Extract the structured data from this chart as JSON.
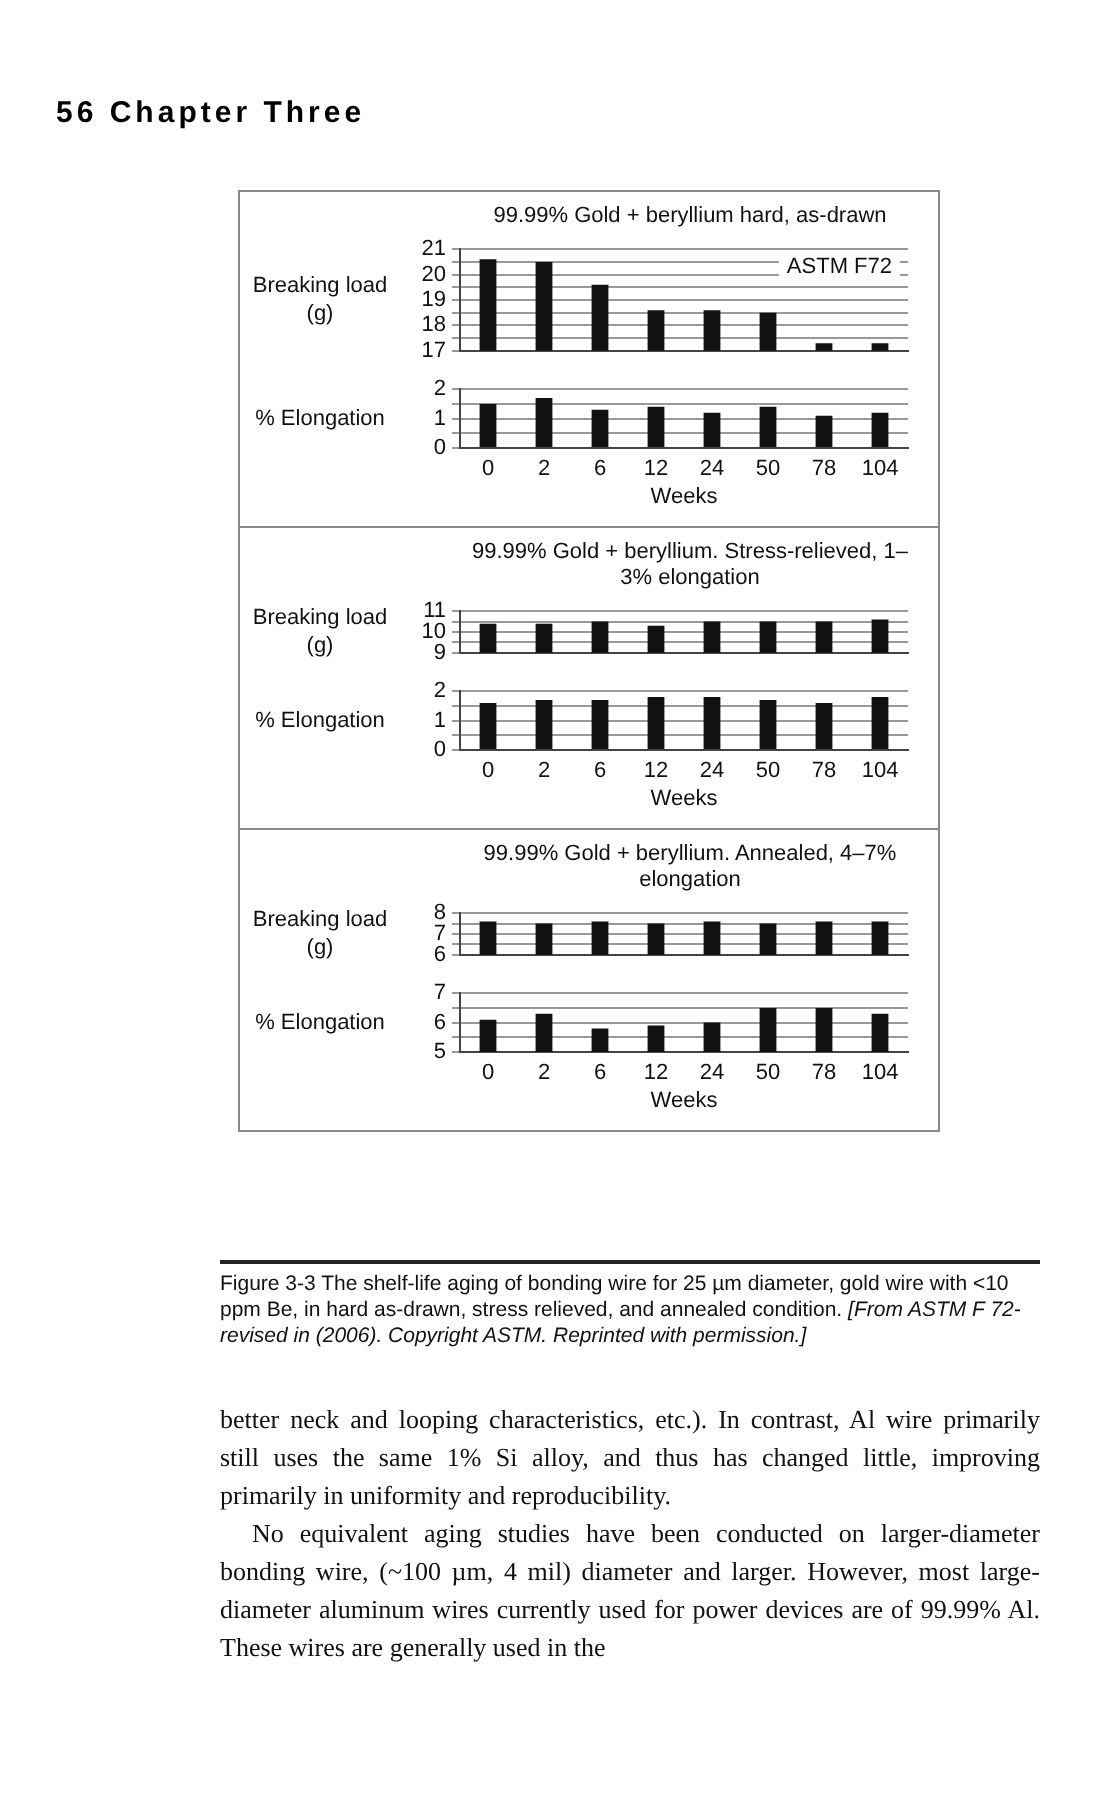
{
  "chart_data": [
    {
      "type": "bar",
      "title": "99.99% Gold + beryllium hard, as-drawn",
      "ylabel": "Breaking load (g)",
      "annotations": [
        "56 Chapter Three",
        "ASTM F72"
      ],
      "categories": [
        "0",
        "2",
        "6",
        "12",
        "24",
        "50",
        "78",
        "104"
      ],
      "values": [
        20.6,
        20.5,
        19.6,
        18.6,
        18.6,
        18.5,
        17.3,
        17.3
      ],
      "color": "#111111",
      "ylim": [
        17,
        21
      ],
      "yticks": [
        17,
        {
          "value": 17.5,
          "label": null
        },
        18,
        {
          "value": 18.5,
          "label": null
        },
        19,
        {
          "value": 19.5,
          "label": null
        },
        20,
        {
          "value": 20.5,
          "label": null
        },
        21
      ],
      "grid": "y",
      "tick_labels": "y"
    },
    {
      "type": "bar",
      "xlabel": "Weeks",
      "ylabel": "% Elongation",
      "categories": [
        "0",
        "2",
        "6",
        "12",
        "24",
        "50",
        "78",
        "104"
      ],
      "values": [
        1.5,
        1.7,
        1.3,
        1.4,
        1.2,
        1.4,
        1.1,
        1.2
      ],
      "color": "#111111",
      "ylim": [
        0,
        2
      ],
      "yticks": [
        0,
        {
          "value": 0.5,
          "label": null
        },
        1,
        {
          "value": 1.5,
          "label": null
        },
        2
      ],
      "grid": "y"
    },
    {
      "type": "bar",
      "title": "99.99% Gold + beryllium. Stress-relieved, 1–3% elongation",
      "ylabel": "Breaking load (g)",
      "categories": [
        "0",
        "2",
        "6",
        "12",
        "24",
        "50",
        "78",
        "104"
      ],
      "values": [
        10.4,
        10.4,
        10.5,
        10.3,
        10.5,
        10.5,
        10.5,
        10.6
      ],
      "color": "#111111",
      "ylim": [
        9,
        11
      ],
      "yticks": [
        9,
        {
          "value": 9.5,
          "label": null
        },
        10,
        {
          "value": 10.5,
          "label": null
        },
        11
      ],
      "grid": "y",
      "tick_labels": "y"
    },
    {
      "type": "bar",
      "xlabel": "Weeks",
      "ylabel": "% Elongation",
      "categories": [
        "0",
        "2",
        "6",
        "12",
        "24",
        "50",
        "78",
        "104"
      ],
      "values": [
        1.6,
        1.7,
        1.7,
        1.8,
        1.8,
        1.7,
        1.6,
        1.8
      ],
      "color": "#111111",
      "ylim": [
        0,
        2
      ],
      "yticks": [
        0,
        {
          "value": 0.5,
          "label": null
        },
        1,
        {
          "value": 1.5,
          "label": null
        },
        2
      ],
      "grid": "y"
    },
    {
      "type": "bar",
      "title": "99.99% Gold + beryllium. Annealed, 4–7% elongation",
      "ylabel": "Breaking load (g)",
      "categories": [
        "0",
        "2",
        "6",
        "12",
        "24",
        "50",
        "78",
        "104"
      ],
      "values": [
        7.6,
        7.5,
        7.6,
        7.5,
        7.6,
        7.5,
        7.6,
        7.6
      ],
      "color": "#111111",
      "ylim": [
        6,
        8
      ],
      "yticks": [
        6,
        {
          "value": 6.5,
          "label": null
        },
        7,
        {
          "value": 7.5,
          "label": null
        },
        8
      ],
      "grid": "y",
      "tick_labels": "y"
    },
    {
      "type": "bar",
      "xlabel": "Weeks",
      "ylabel": "% Elongation",
      "annotations": [
        "Figure 3-3 The shelf-life aging of bonding wire for 25 µm diameter, gold wire with <10 ppm Be, in hard as-drawn, stress relieved, and annealed condition.",
        "[From ASTM F 72-revised in (2006). Copyright ASTM. Reprinted with permission.]",
        "better neck and looping characteristics, etc.). In contrast, Al wire primarily still uses the same 1% Si alloy, and thus has changed little, improving primarily in uniformity and reproducibility.",
        "No equivalent aging studies have been conducted on larger-diameter bonding wire, (~100 µm, 4 mil) diameter and larger. However, most large-diameter aluminum wires currently used for power devices are of 99.99% Al. These wires are generally used in the"
      ],
      "categories": [
        "0",
        "2",
        "6",
        "12",
        "24",
        "50",
        "78",
        "104"
      ],
      "values": [
        6.1,
        6.3,
        5.8,
        5.9,
        6.0,
        6.5,
        6.5,
        6.3
      ],
      "color": "#111111",
      "ylim": [
        5,
        7
      ],
      "yticks": [
        5,
        {
          "value": 5.5,
          "label": null
        },
        6,
        {
          "value": 6.5,
          "label": null
        },
        7
      ],
      "grid": "y"
    }
  ]
}
